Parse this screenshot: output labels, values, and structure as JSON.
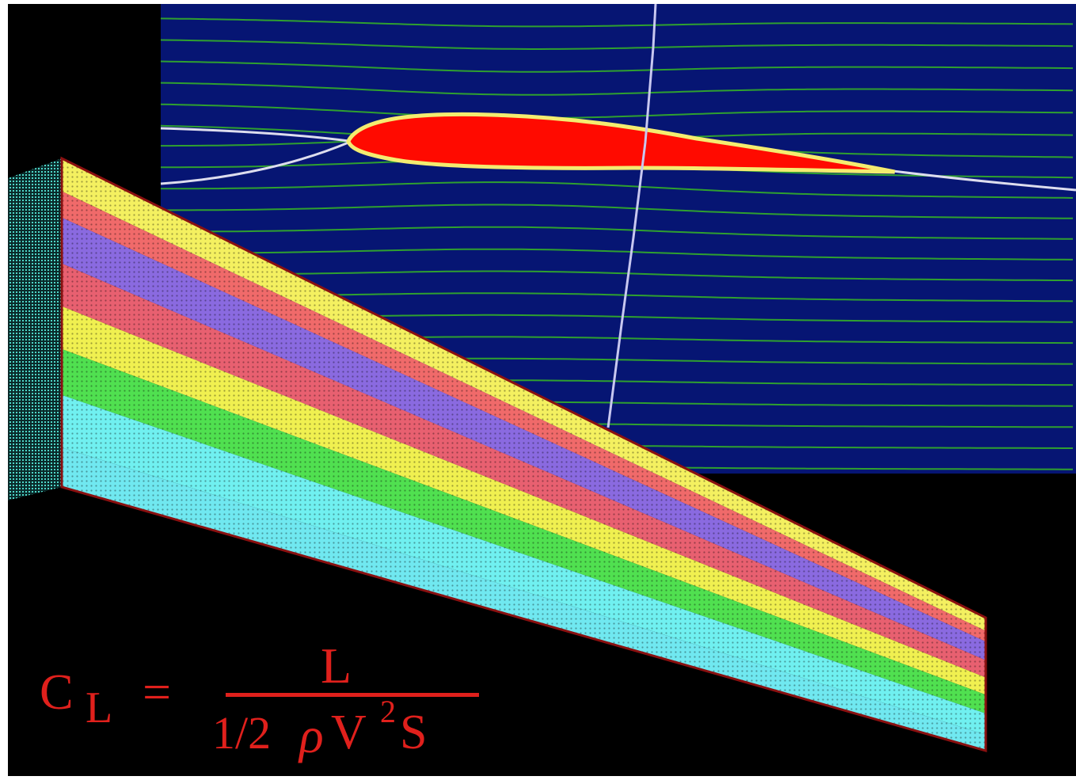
{
  "formula": {
    "lhs": "C",
    "lhs_subscript": "L",
    "equals": "=",
    "numerator": "L",
    "denominator": {
      "coefficient": "1/2",
      "density": "ρ",
      "velocity": "V",
      "exponent": "2",
      "area": "S"
    }
  }
}
